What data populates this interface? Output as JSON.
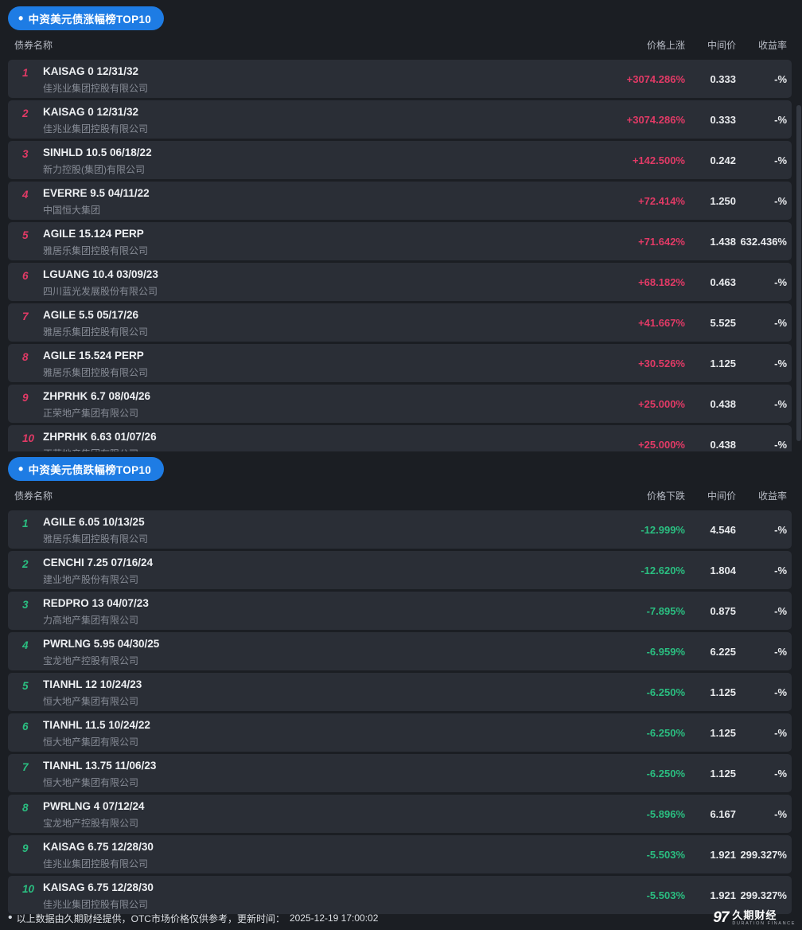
{
  "colors": {
    "pill_blue": "#1e7ce4",
    "accent_up": "#e23a66",
    "accent_down": "#2abf81",
    "card_bg": "#2a2e36",
    "page_bg": "#1b1e23"
  },
  "sections": [
    {
      "id": "gainers",
      "title": "中资美元债涨幅榜TOP10",
      "accent": "#e23a66",
      "clipped": true,
      "columns": {
        "name": "债券名称",
        "change": "价格上涨",
        "mid": "中间价",
        "yield": "收益率"
      },
      "rows": [
        {
          "rank": "1",
          "bond": "KAISAG 0 12/31/32",
          "company": "佳兆业集团控股有限公司",
          "change": "+3074.286%",
          "mid": "0.333",
          "yield": "-%"
        },
        {
          "rank": "2",
          "bond": "KAISAG 0 12/31/32",
          "company": "佳兆业集团控股有限公司",
          "change": "+3074.286%",
          "mid": "0.333",
          "yield": "-%"
        },
        {
          "rank": "3",
          "bond": "SINHLD 10.5 06/18/22",
          "company": "新力控股(集团)有限公司",
          "change": "+142.500%",
          "mid": "0.242",
          "yield": "-%"
        },
        {
          "rank": "4",
          "bond": "EVERRE 9.5 04/11/22",
          "company": "中国恒大集团",
          "change": "+72.414%",
          "mid": "1.250",
          "yield": "-%"
        },
        {
          "rank": "5",
          "bond": "AGILE 15.124 PERP",
          "company": "雅居乐集团控股有限公司",
          "change": "+71.642%",
          "mid": "1.438",
          "yield": "632.436%"
        },
        {
          "rank": "6",
          "bond": "LGUANG 10.4 03/09/23",
          "company": "四川蓝光发展股份有限公司",
          "change": "+68.182%",
          "mid": "0.463",
          "yield": "-%"
        },
        {
          "rank": "7",
          "bond": "AGILE 5.5 05/17/26",
          "company": "雅居乐集团控股有限公司",
          "change": "+41.667%",
          "mid": "5.525",
          "yield": "-%"
        },
        {
          "rank": "8",
          "bond": "AGILE 15.524 PERP",
          "company": "雅居乐集团控股有限公司",
          "change": "+30.526%",
          "mid": "1.125",
          "yield": "-%"
        },
        {
          "rank": "9",
          "bond": "ZHPRHK 6.7 08/04/26",
          "company": "正荣地产集团有限公司",
          "change": "+25.000%",
          "mid": "0.438",
          "yield": "-%"
        },
        {
          "rank": "10",
          "bond": "ZHPRHK 6.63 01/07/26",
          "company": "正荣地产集团有限公司",
          "change": "+25.000%",
          "mid": "0.438",
          "yield": "-%"
        }
      ]
    },
    {
      "id": "losers",
      "title": "中资美元债跌幅榜TOP10",
      "accent": "#2abf81",
      "clipped": false,
      "columns": {
        "name": "债券名称",
        "change": "价格下跌",
        "mid": "中间价",
        "yield": "收益率"
      },
      "rows": [
        {
          "rank": "1",
          "bond": "AGILE 6.05 10/13/25",
          "company": "雅居乐集团控股有限公司",
          "change": "-12.999%",
          "mid": "4.546",
          "yield": "-%"
        },
        {
          "rank": "2",
          "bond": "CENCHI 7.25 07/16/24",
          "company": "建业地产股份有限公司",
          "change": "-12.620%",
          "mid": "1.804",
          "yield": "-%"
        },
        {
          "rank": "3",
          "bond": "REDPRO 13 04/07/23",
          "company": "力高地产集团有限公司",
          "change": "-7.895%",
          "mid": "0.875",
          "yield": "-%"
        },
        {
          "rank": "4",
          "bond": "PWRLNG 5.95 04/30/25",
          "company": "宝龙地产控股有限公司",
          "change": "-6.959%",
          "mid": "6.225",
          "yield": "-%"
        },
        {
          "rank": "5",
          "bond": "TIANHL 12 10/24/23",
          "company": "恒大地产集团有限公司",
          "change": "-6.250%",
          "mid": "1.125",
          "yield": "-%"
        },
        {
          "rank": "6",
          "bond": "TIANHL 11.5 10/24/22",
          "company": "恒大地产集团有限公司",
          "change": "-6.250%",
          "mid": "1.125",
          "yield": "-%"
        },
        {
          "rank": "7",
          "bond": "TIANHL 13.75 11/06/23",
          "company": "恒大地产集团有限公司",
          "change": "-6.250%",
          "mid": "1.125",
          "yield": "-%"
        },
        {
          "rank": "8",
          "bond": "PWRLNG 4 07/12/24",
          "company": "宝龙地产控股有限公司",
          "change": "-5.896%",
          "mid": "6.167",
          "yield": "-%"
        },
        {
          "rank": "9",
          "bond": "KAISAG 6.75 12/28/30",
          "company": "佳兆业集团控股有限公司",
          "change": "-5.503%",
          "mid": "1.921",
          "yield": "299.327%"
        },
        {
          "rank": "10",
          "bond": "KAISAG 6.75 12/28/30",
          "company": "佳兆业集团控股有限公司",
          "change": "-5.503%",
          "mid": "1.921",
          "yield": "299.327%"
        }
      ]
    }
  ],
  "footer": {
    "bullet": "•",
    "note": "以上数据由久期财经提供，OTC市场价格仅供参考，更新时间：",
    "timestamp": "2025-12-19 17:00:02",
    "logo_mark": "97",
    "logo_cn": "久期财经",
    "logo_en": "DURATION FINANCE"
  }
}
